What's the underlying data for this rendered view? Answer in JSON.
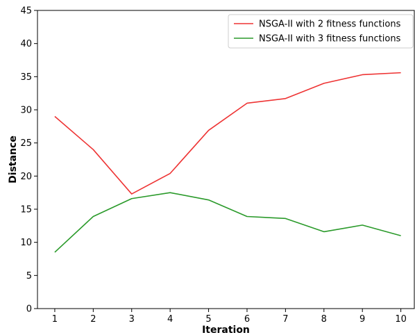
{
  "chart_data": {
    "type": "line",
    "title": "",
    "xlabel": "Iteration",
    "ylabel": "Distance",
    "x": [
      1,
      2,
      3,
      4,
      5,
      6,
      7,
      8,
      9,
      10
    ],
    "xlim": [
      0.55,
      10.35
    ],
    "ylim": [
      0,
      45
    ],
    "x_ticks": [
      1,
      2,
      3,
      4,
      5,
      6,
      7,
      8,
      9,
      10
    ],
    "y_ticks": [
      0,
      5,
      10,
      15,
      20,
      25,
      30,
      35,
      40,
      45
    ],
    "grid": false,
    "legend_position": "top-right",
    "series": [
      {
        "name": "NSGA-II with 2 fitness functions",
        "color": "#ee3333",
        "values": [
          29.0,
          24.0,
          17.3,
          20.4,
          26.9,
          31.0,
          31.7,
          34.0,
          35.3,
          35.6
        ]
      },
      {
        "name": "NSGA-II with 3 fitness functions",
        "color": "#2a9a2a",
        "values": [
          8.5,
          13.9,
          16.6,
          17.5,
          16.4,
          13.9,
          13.6,
          11.6,
          12.6,
          11.0
        ]
      }
    ]
  }
}
